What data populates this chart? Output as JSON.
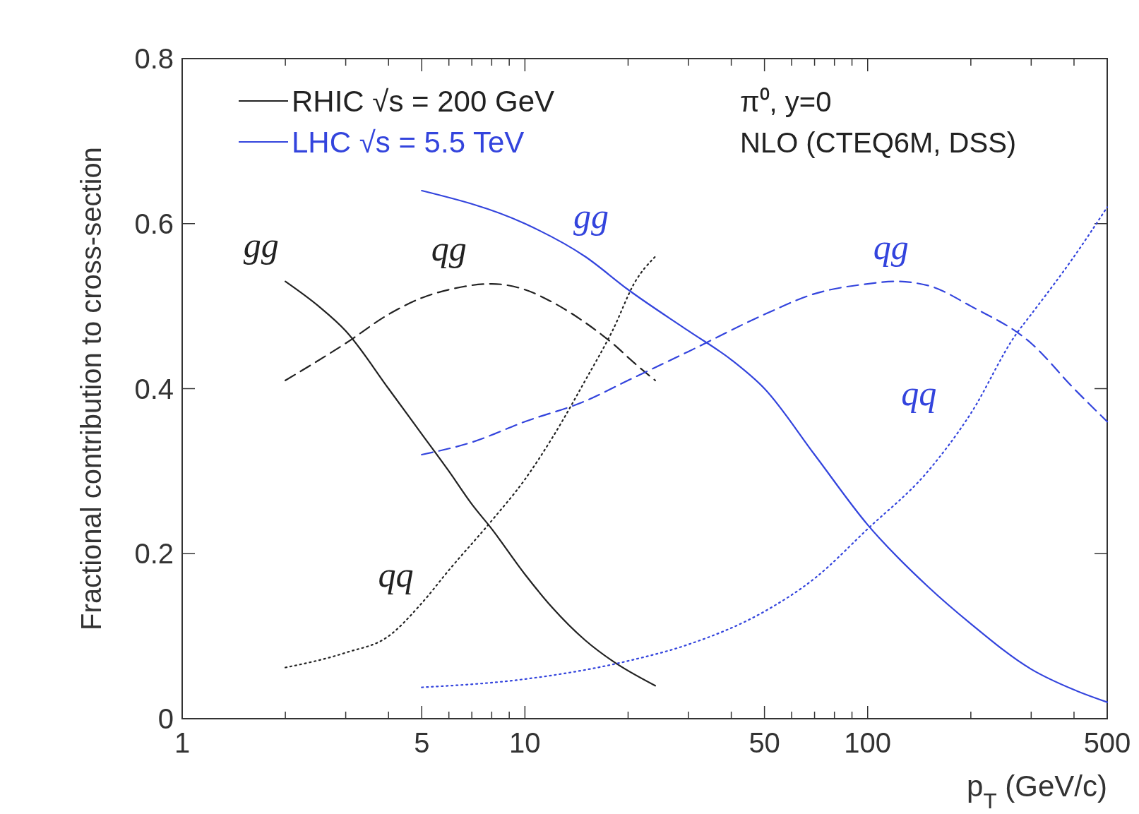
{
  "chart_data": {
    "type": "line",
    "xlabel": "p$_{T}$ (GeV/c)",
    "ylabel": "Fractional contribution to cross-section",
    "log": "x",
    "xlim": [
      1,
      500
    ],
    "ylim": [
      0,
      0.8
    ],
    "xticks": [
      1,
      {
        "value": 2,
        "label": null
      },
      {
        "value": 3,
        "label": null
      },
      {
        "value": 4,
        "label": null
      },
      5,
      {
        "value": 6,
        "label": null
      },
      {
        "value": 7,
        "label": null
      },
      {
        "value": 8,
        "label": null
      },
      {
        "value": 9,
        "label": null
      },
      10,
      {
        "value": 20,
        "label": null
      },
      {
        "value": 30,
        "label": null
      },
      {
        "value": 40,
        "label": null
      },
      50,
      {
        "value": 60,
        "label": null
      },
      {
        "value": 70,
        "label": null
      },
      {
        "value": 80,
        "label": null
      },
      {
        "value": 90,
        "label": null
      },
      100,
      {
        "value": 200,
        "label": null
      },
      {
        "value": 300,
        "label": null
      },
      {
        "value": 400,
        "label": null
      },
      500
    ],
    "yticks": [
      0,
      0.2,
      0.4,
      0.6,
      0.8
    ],
    "grid": false,
    "legend": "top left",
    "series": [
      {
        "name": "RHIC √s = 200 GeV",
        "color": "#222222",
        "line_style": "solid",
        "x": [
          2,
          2.5,
          3,
          4,
          5,
          6,
          7,
          8,
          10,
          12,
          15,
          18,
          24
        ],
        "values": [
          0.53,
          0.5,
          0.47,
          0.4,
          0.345,
          0.3,
          0.26,
          0.23,
          0.175,
          0.135,
          0.095,
          0.07,
          0.04
        ]
      },
      {
        "color": "#222222",
        "line_style": "dashed",
        "x": [
          2,
          3,
          4,
          5,
          6,
          8,
          10,
          12,
          15,
          18,
          21,
          24
        ],
        "values": [
          0.41,
          0.455,
          0.49,
          0.51,
          0.52,
          0.527,
          0.52,
          0.505,
          0.48,
          0.455,
          0.43,
          0.41
        ]
      },
      {
        "color": "#222222",
        "line_style": "dotted",
        "x": [
          2,
          3,
          4,
          5,
          6,
          8,
          10,
          12,
          15,
          18,
          21,
          24
        ],
        "values": [
          0.062,
          0.08,
          0.1,
          0.14,
          0.18,
          0.24,
          0.29,
          0.34,
          0.41,
          0.47,
          0.53,
          0.56
        ]
      },
      {
        "name": "LHC √s = 5.5 TeV",
        "color": "#3344dd",
        "line_style": "solid",
        "x": [
          5,
          10,
          15,
          20,
          30,
          40,
          50,
          70,
          100,
          150,
          200,
          300,
          400,
          500
        ],
        "values": [
          0.64,
          0.6,
          0.56,
          0.52,
          0.47,
          0.435,
          0.4,
          0.32,
          0.235,
          0.16,
          0.115,
          0.06,
          0.035,
          0.02
        ]
      },
      {
        "color": "#3344dd",
        "line_style": "dashed",
        "x": [
          5,
          7,
          10,
          15,
          20,
          30,
          50,
          70,
          100,
          120,
          150,
          200,
          300,
          400,
          500
        ],
        "values": [
          0.32,
          0.335,
          0.36,
          0.385,
          0.41,
          0.445,
          0.49,
          0.515,
          0.527,
          0.53,
          0.525,
          0.5,
          0.455,
          0.4,
          0.36
        ]
      },
      {
        "color": "#3344dd",
        "line_style": "dotted",
        "x": [
          5,
          10,
          20,
          30,
          50,
          70,
          100,
          150,
          200,
          270,
          300,
          400,
          500
        ],
        "values": [
          0.038,
          0.048,
          0.07,
          0.09,
          0.13,
          0.17,
          0.23,
          0.3,
          0.37,
          0.465,
          0.49,
          0.56,
          0.62
        ]
      }
    ],
    "annotations": [
      "gg",
      "qg",
      "qq",
      "gg",
      "qg",
      "qq",
      "π⁰, y=0",
      "NLO (CTEQ6M, DSS)"
    ]
  }
}
